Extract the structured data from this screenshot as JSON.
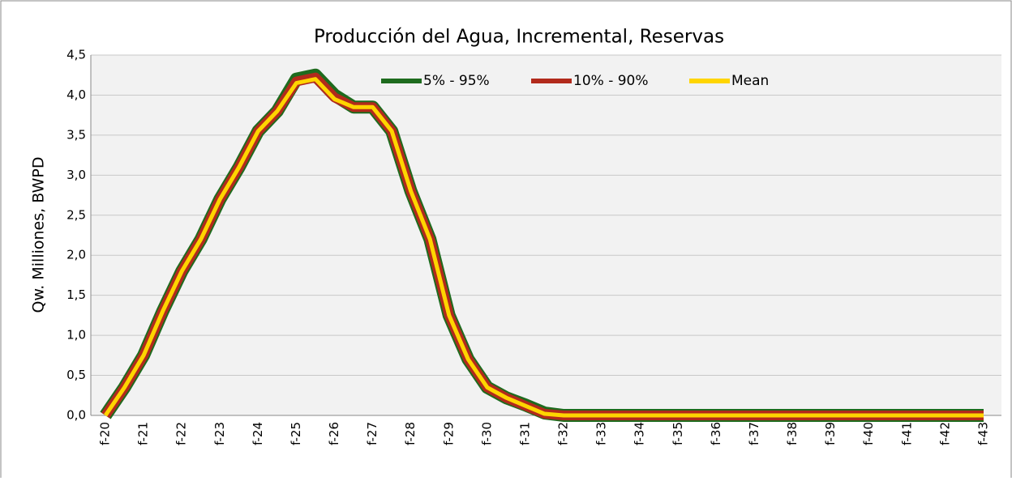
{
  "chart_data": {
    "type": "line",
    "title": "Producción del Agua, Incremental, Reservas",
    "y_label": "Qw. Milliones, BWPD",
    "categories": [
      "f-20",
      null,
      "f-21",
      null,
      "f-22",
      null,
      "f-23",
      null,
      "f-24",
      null,
      "f-25",
      null,
      "f-26",
      null,
      "f-27",
      null,
      "f-28",
      null,
      "f-29",
      null,
      "f-30",
      null,
      "f-31",
      null,
      "f-32",
      null,
      "f-33",
      null,
      "f-34",
      null,
      "f-35",
      null,
      "f-36",
      null,
      "f-37",
      null,
      "f-38",
      null,
      "f-39",
      null,
      "f-40",
      null,
      "f-41",
      null,
      "f-42",
      null,
      "f-43"
    ],
    "series": [
      {
        "name": "5% - 95%",
        "color": "#1e6b1e",
        "values": [
          0,
          0.35,
          0.75,
          1.3,
          1.8,
          2.2,
          2.7,
          3.1,
          3.55,
          3.8,
          4.2,
          4.25,
          4.0,
          3.85,
          3.85,
          3.55,
          2.8,
          2.2,
          1.25,
          0.7,
          0.35,
          0.22,
          0.13,
          0.03,
          0,
          0,
          0,
          0,
          0,
          0,
          0,
          0,
          0,
          0,
          0,
          0,
          0,
          0,
          0,
          0,
          0,
          0,
          0,
          0,
          0,
          0,
          0
        ]
      },
      {
        "name": "10% - 90%",
        "color": "#b22a1c",
        "values": [
          0,
          0.35,
          0.75,
          1.3,
          1.8,
          2.2,
          2.7,
          3.1,
          3.55,
          3.8,
          4.17,
          4.22,
          3.97,
          3.85,
          3.85,
          3.55,
          2.8,
          2.2,
          1.25,
          0.7,
          0.35,
          0.22,
          0.12,
          0.02,
          0,
          0,
          0,
          0,
          0,
          0,
          0,
          0,
          0,
          0,
          0,
          0,
          0,
          0,
          0,
          0,
          0,
          0,
          0,
          0,
          0,
          0,
          0
        ]
      },
      {
        "name": "Mean",
        "color": "#ffd500",
        "values": [
          0,
          0.35,
          0.75,
          1.3,
          1.8,
          2.2,
          2.7,
          3.1,
          3.55,
          3.8,
          4.15,
          4.2,
          3.95,
          3.85,
          3.85,
          3.55,
          2.8,
          2.2,
          1.25,
          0.7,
          0.35,
          0.22,
          0.12,
          0.02,
          0,
          0,
          0,
          0,
          0,
          0,
          0,
          0,
          0,
          0,
          0,
          0,
          0,
          0,
          0,
          0,
          0,
          0,
          0,
          0,
          0,
          0,
          0
        ]
      }
    ],
    "ylim": [
      0,
      4.5
    ],
    "yticks": [
      {
        "value": 0,
        "label": "0,0"
      },
      {
        "value": 0.5,
        "label": "0,5"
      },
      {
        "value": 1,
        "label": "1,0"
      },
      {
        "value": 1.5,
        "label": "1,5"
      },
      {
        "value": 2,
        "label": "2,0"
      },
      {
        "value": 2.5,
        "label": "2,5"
      },
      {
        "value": 3,
        "label": "3,0"
      },
      {
        "value": 3.5,
        "label": "3,5"
      },
      {
        "value": 4,
        "label": "4,0"
      },
      {
        "value": 4.5,
        "label": "4,5"
      }
    ],
    "grid": true
  }
}
